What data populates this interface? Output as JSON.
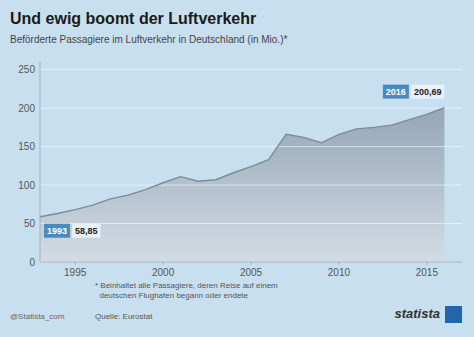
{
  "chart_data": {
    "type": "area",
    "title": "Und ewig boomt der Luftverkehr",
    "subtitle": "Beförderte Passagiere im Luftverkehr in Deutschland (in Mio.)*",
    "footnote": "* Beinhaltet alle Passagiere, deren Reise auf einem\n  deutschen Flughafen begann oder endete",
    "source": "Quelle: Eurostat",
    "credits": [
      "statista",
      "@Statista_com"
    ],
    "x": [
      1993,
      1994,
      1995,
      1996,
      1997,
      1998,
      1999,
      2000,
      2001,
      2002,
      2003,
      2004,
      2005,
      2006,
      2007,
      2008,
      2009,
      2010,
      2011,
      2012,
      2013,
      2014,
      2015,
      2016
    ],
    "values": [
      58.85,
      63.0,
      68.0,
      74.0,
      82.0,
      87.0,
      94.0,
      103.0,
      111.0,
      105.0,
      107.0,
      116.0,
      124.0,
      133.0,
      166.0,
      162.0,
      155.0,
      166.0,
      173.0,
      175.0,
      178.0,
      185.0,
      192.0,
      200.69
    ],
    "annotations": [
      {
        "text": "1993"
      },
      {
        "text": "58,85"
      },
      {
        "text": "2016"
      },
      {
        "text": "200,69"
      }
    ],
    "color": "#7a8c99",
    "xlim": [
      1993,
      2017
    ],
    "xticks": [
      1995,
      2000,
      2005,
      2010,
      2015
    ],
    "ylim": [
      0,
      260
    ],
    "yticks": [
      0,
      50,
      100,
      150,
      200,
      250
    ],
    "grid": true
  }
}
